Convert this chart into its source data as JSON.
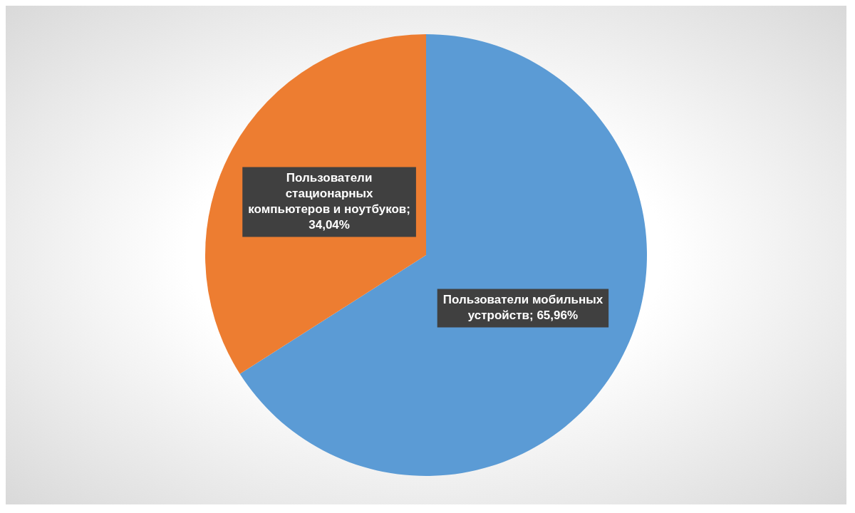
{
  "chart_data": {
    "type": "pie",
    "categories": [
      "Пользователи мобильных устройств",
      "Пользователи стационарных компьютеров и ноутбуков"
    ],
    "values": [
      65.96,
      34.04
    ],
    "value_labels": [
      "; 65,96%",
      "; 34,04%"
    ],
    "colors": [
      "#5b9bd5",
      "#ed7d31"
    ],
    "legend": false
  }
}
